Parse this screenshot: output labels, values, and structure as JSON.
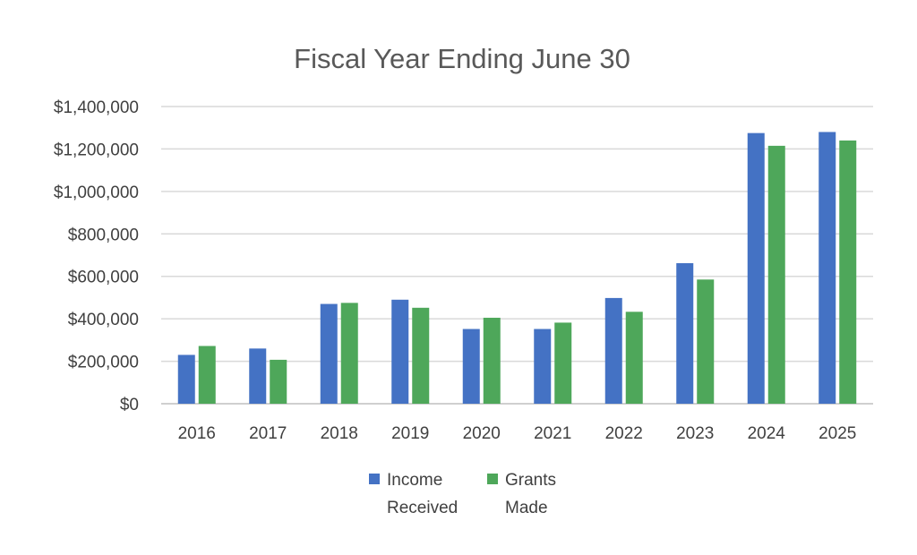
{
  "chart_data": {
    "type": "bar",
    "title": "Fiscal Year Ending June 30",
    "categories": [
      "2016",
      "2017",
      "2018",
      "2019",
      "2020",
      "2021",
      "2022",
      "2023",
      "2024",
      "2025"
    ],
    "series": [
      {
        "name": "Income Received",
        "name_lines": [
          "Income",
          "Received"
        ],
        "color": "#4472c4",
        "values": [
          230000,
          260000,
          470000,
          490000,
          352000,
          352000,
          498000,
          662000,
          1275000,
          1280000
        ]
      },
      {
        "name": "Grants Made",
        "name_lines": [
          "Grants",
          "Made"
        ],
        "color": "#4ea75a",
        "values": [
          272000,
          207000,
          475000,
          452000,
          405000,
          382000,
          433000,
          585000,
          1215000,
          1240000
        ]
      }
    ],
    "ylim": [
      0,
      1400000
    ],
    "yticks": [
      0,
      200000,
      400000,
      600000,
      800000,
      1000000,
      1200000,
      1400000
    ],
    "ytick_labels": [
      "$0",
      "$200,000",
      "$400,000",
      "$600,000",
      "$800,000",
      "$1,000,000",
      "$1,200,000",
      "$1,400,000"
    ],
    "grid": true,
    "legend_position": "bottom"
  }
}
